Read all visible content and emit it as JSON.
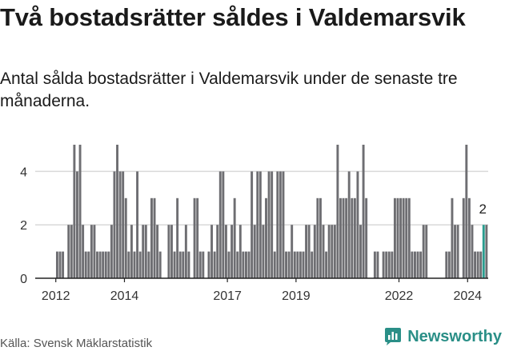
{
  "header": {
    "title": "Två bostadsrätter såldes i Valdemarsvik",
    "subtitle": "Antal sålda bostadsrätter i Valdemarsvik under de senaste tre månaderna."
  },
  "footer": {
    "source": "Källa: Svensk Mäklarstatistik",
    "brand": "Newsworthy"
  },
  "colors": {
    "bar": "#6e6e72",
    "highlight": "#2a9d8f",
    "grid": "#d9d9d9",
    "axis": "#222222",
    "brand": "#2a8f87"
  },
  "chart_data": {
    "type": "bar",
    "title": "Två bostadsrätter såldes i Valdemarsvik",
    "xlabel": "",
    "ylabel": "",
    "ylim": [
      0,
      5
    ],
    "yticks": [
      0,
      2,
      4
    ],
    "xlim": [
      2011.4,
      2024.6
    ],
    "xticks": [
      2012,
      2014,
      2017,
      2019,
      2022,
      2024
    ],
    "grid": true,
    "bar_width_years": 0.068,
    "x_start": 2012.04,
    "x_step": 0.0834,
    "values": [
      1,
      1,
      1,
      0,
      2,
      2,
      5,
      4,
      5,
      2,
      1,
      1,
      2,
      2,
      1,
      1,
      1,
      1,
      1,
      2,
      4,
      5,
      4,
      4,
      3,
      1,
      2,
      1,
      4,
      1,
      2,
      2,
      1,
      3,
      3,
      2,
      1,
      0,
      0,
      2,
      2,
      1,
      3,
      1,
      1,
      2,
      1,
      0,
      3,
      3,
      1,
      1,
      0,
      1,
      2,
      1,
      2,
      4,
      4,
      2,
      1,
      2,
      3,
      1,
      2,
      1,
      1,
      1,
      4,
      2,
      4,
      4,
      2,
      3,
      4,
      4,
      1,
      4,
      4,
      4,
      1,
      1,
      2,
      1,
      1,
      1,
      1,
      2,
      2,
      1,
      2,
      3,
      3,
      2,
      1,
      2,
      2,
      2,
      5,
      3,
      3,
      3,
      4,
      3,
      3,
      4,
      2,
      5,
      3,
      0,
      0,
      1,
      1,
      0,
      1,
      1,
      1,
      1,
      3,
      3,
      3,
      3,
      3,
      3,
      1,
      1,
      1,
      1,
      2,
      2,
      0,
      0,
      0,
      0,
      0,
      0,
      1,
      1,
      3,
      2,
      2,
      0,
      3,
      5,
      3,
      2,
      1,
      1,
      1,
      2,
      2
    ],
    "highlight_index": 149,
    "highlight_label": "2"
  }
}
